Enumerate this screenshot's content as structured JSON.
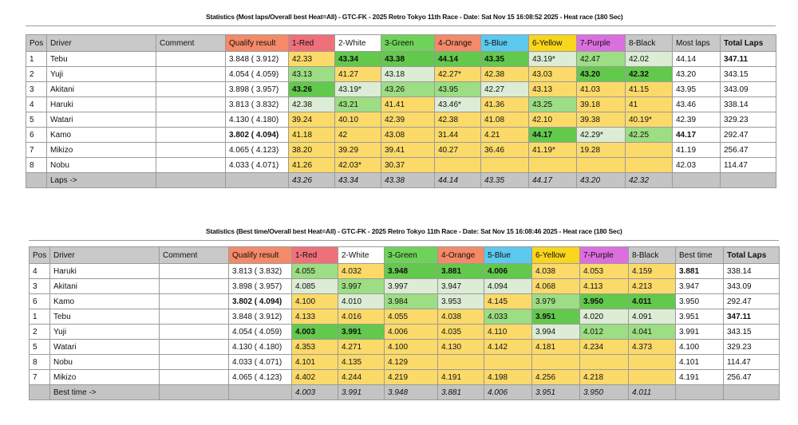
{
  "colors": {
    "Y": "#fbda6a",
    "G1": "#63c94c",
    "G2": "#9ddd83",
    "G3": "#dcecd5"
  },
  "headers": {
    "pos": "Pos",
    "driver": "Driver",
    "comment": "Comment",
    "qualify": "Qualify result",
    "lanes": [
      {
        "label": "1-Red",
        "color": "#f0707a"
      },
      {
        "label": "2-White",
        "color": "#ffffff"
      },
      {
        "label": "3-Green",
        "color": "#6fd35a"
      },
      {
        "label": "4-Orange",
        "color": "#f48a68"
      },
      {
        "label": "5-Blue",
        "color": "#5cc9ee"
      },
      {
        "label": "6-Yellow",
        "color": "#f9d51c"
      },
      {
        "label": "7-Purple",
        "color": "#dc6ee0"
      },
      {
        "label": "8-Black",
        "color": "#c8c8c8"
      }
    ]
  },
  "tables": [
    {
      "title": "Statistics (Most laps/Overall best Heat=All) - GTC-FK - 2025 Retro Tokyo 11th Race - Date: Sat Nov 15 16:08:52 2025 - Heat race (180 Sec)",
      "stat_label": "Most laps",
      "total_label": "Total Laps",
      "footer_label": "Laps ->",
      "rows": [
        {
          "pos": "1",
          "driver": "Tebu",
          "qualify": "3.848 ( 3.912)",
          "cells": [
            [
              "42.33",
              "Y"
            ],
            [
              "43.34",
              "G1"
            ],
            [
              "43.38",
              "G1"
            ],
            [
              "44.14",
              "G1"
            ],
            [
              "43.35",
              "G1"
            ],
            [
              "43.19*",
              "G3"
            ],
            [
              "42.47",
              "G2"
            ],
            [
              "42.02",
              "G3"
            ]
          ],
          "stat": "44.14",
          "total": "347.11",
          "total_bold": true
        },
        {
          "pos": "2",
          "driver": "Yuji",
          "qualify": "4.054 ( 4.059)",
          "cells": [
            [
              "43.13",
              "G2"
            ],
            [
              "41.27",
              "Y"
            ],
            [
              "43.18",
              "G3"
            ],
            [
              "42.27*",
              "Y"
            ],
            [
              "42.38",
              "Y"
            ],
            [
              "43.03",
              "Y"
            ],
            [
              "43.20",
              "G1"
            ],
            [
              "42.32",
              "G1"
            ]
          ],
          "stat": "43.20",
          "total": "343.15"
        },
        {
          "pos": "3",
          "driver": "Akitani",
          "qualify": "3.898 ( 3.957)",
          "cells": [
            [
              "43.26",
              "G1"
            ],
            [
              "43.19*",
              "G3"
            ],
            [
              "43.26",
              "G2"
            ],
            [
              "43.95",
              "G2"
            ],
            [
              "42.27",
              "G3"
            ],
            [
              "43.13",
              "Y"
            ],
            [
              "41.03",
              "Y"
            ],
            [
              "41.15",
              "Y"
            ]
          ],
          "stat": "43.95",
          "total": "343.09"
        },
        {
          "pos": "4",
          "driver": "Haruki",
          "qualify": "3.813 ( 3.832)",
          "cells": [
            [
              "42.38",
              "G3"
            ],
            [
              "43.21",
              "G2"
            ],
            [
              "41.41",
              "Y"
            ],
            [
              "43.46*",
              "G3"
            ],
            [
              "41.36",
              "Y"
            ],
            [
              "43.25",
              "G2"
            ],
            [
              "39.18",
              "Y"
            ],
            [
              "41",
              "Y"
            ]
          ],
          "stat": "43.46",
          "total": "338.14"
        },
        {
          "pos": "5",
          "driver": "Watari",
          "qualify": "4.130 ( 4.180)",
          "cells": [
            [
              "39.24",
              "Y"
            ],
            [
              "40.10",
              "Y"
            ],
            [
              "42.39",
              "Y"
            ],
            [
              "42.38",
              "Y"
            ],
            [
              "41.08",
              "Y"
            ],
            [
              "42.10",
              "Y"
            ],
            [
              "39.38",
              "Y"
            ],
            [
              "40.19*",
              "Y"
            ]
          ],
          "stat": "42.39",
          "total": "329.23"
        },
        {
          "pos": "6",
          "driver": "Kamo",
          "qualify": "3.802 ( 4.094)",
          "qualify_bold": true,
          "cells": [
            [
              "41.18",
              "Y"
            ],
            [
              "42",
              "Y"
            ],
            [
              "43.08",
              "Y"
            ],
            [
              "31.44",
              "Y"
            ],
            [
              "4.21",
              "Y"
            ],
            [
              "44.17",
              "G1"
            ],
            [
              "42.29*",
              "G3"
            ],
            [
              "42.25",
              "G2"
            ]
          ],
          "stat": "44.17",
          "stat_bold": true,
          "total": "292.47"
        },
        {
          "pos": "7",
          "driver": "Mikizo",
          "qualify": "4.065 ( 4.123)",
          "cells": [
            [
              "38.20",
              "Y"
            ],
            [
              "39.29",
              "Y"
            ],
            [
              "39.41",
              "Y"
            ],
            [
              "40.27",
              "Y"
            ],
            [
              "36.46",
              "Y"
            ],
            [
              "41.19*",
              "Y"
            ],
            [
              "19.28",
              "Y"
            ],
            [
              "",
              "Y"
            ]
          ],
          "stat": "41.19",
          "total": "256.47"
        },
        {
          "pos": "8",
          "driver": "Nobu",
          "qualify": "4.033 ( 4.071)",
          "cells": [
            [
              "41.26",
              "Y"
            ],
            [
              "42.03*",
              "Y"
            ],
            [
              "30.37",
              "Y"
            ],
            [
              "",
              "Y"
            ],
            [
              "",
              "Y"
            ],
            [
              "",
              "Y"
            ],
            [
              "",
              "Y"
            ],
            [
              "",
              "Y"
            ]
          ],
          "stat": "42.03",
          "total": "114.47"
        }
      ],
      "footer": [
        "43.26",
        "43.34",
        "43.38",
        "44.14",
        "43.35",
        "44.17",
        "43.20",
        "42.32"
      ]
    },
    {
      "title": "Statistics (Best time/Overall best Heat=All) - GTC-FK - 2025 Retro Tokyo 11th Race - Date: Sat Nov 15 16:08:46 2025 - Heat race (180 Sec)",
      "stat_label": "Best time",
      "total_label": "Total Laps",
      "footer_label": "Best time ->",
      "rows": [
        {
          "pos": "4",
          "driver": "Haruki",
          "qualify": "3.813 ( 3.832)",
          "cells": [
            [
              "4.055",
              "G2"
            ],
            [
              "4.032",
              "Y"
            ],
            [
              "3.948",
              "G1"
            ],
            [
              "3.881",
              "G1"
            ],
            [
              "4.006",
              "G1"
            ],
            [
              "4.038",
              "Y"
            ],
            [
              "4.053",
              "Y"
            ],
            [
              "4.159",
              "Y"
            ]
          ],
          "stat": "3.881",
          "stat_bold": true,
          "total": "338.14"
        },
        {
          "pos": "3",
          "driver": "Akitani",
          "qualify": "3.898 ( 3.957)",
          "cells": [
            [
              "4.085",
              "G3"
            ],
            [
              "3.997",
              "G2"
            ],
            [
              "3.997",
              "G3"
            ],
            [
              "3.947",
              "G3"
            ],
            [
              "4.094",
              "G3"
            ],
            [
              "4.068",
              "Y"
            ],
            [
              "4.113",
              "Y"
            ],
            [
              "4.213",
              "Y"
            ]
          ],
          "stat": "3.947",
          "total": "343.09"
        },
        {
          "pos": "6",
          "driver": "Kamo",
          "qualify": "3.802 ( 4.094)",
          "qualify_bold": true,
          "cells": [
            [
              "4.100",
              "Y"
            ],
            [
              "4.010",
              "G3"
            ],
            [
              "3.984",
              "G2"
            ],
            [
              "3.953",
              "G3"
            ],
            [
              "4.145",
              "Y"
            ],
            [
              "3.979",
              "G2"
            ],
            [
              "3.950",
              "G1"
            ],
            [
              "4.011",
              "G1"
            ]
          ],
          "stat": "3.950",
          "total": "292.47"
        },
        {
          "pos": "1",
          "driver": "Tebu",
          "qualify": "3.848 ( 3.912)",
          "cells": [
            [
              "4.133",
              "Y"
            ],
            [
              "4.016",
              "Y"
            ],
            [
              "4.055",
              "Y"
            ],
            [
              "4.038",
              "Y"
            ],
            [
              "4.033",
              "G2"
            ],
            [
              "3.951",
              "G1"
            ],
            [
              "4.020",
              "G3"
            ],
            [
              "4.091",
              "G3"
            ]
          ],
          "stat": "3.951",
          "total": "347.11",
          "total_bold": true
        },
        {
          "pos": "2",
          "driver": "Yuji",
          "qualify": "4.054 ( 4.059)",
          "cells": [
            [
              "4.003",
              "G1"
            ],
            [
              "3.991",
              "G1"
            ],
            [
              "4.006",
              "Y"
            ],
            [
              "4.035",
              "Y"
            ],
            [
              "4.110",
              "Y"
            ],
            [
              "3.994",
              "G3"
            ],
            [
              "4.012",
              "G2"
            ],
            [
              "4.041",
              "G2"
            ]
          ],
          "stat": "3.991",
          "total": "343.15"
        },
        {
          "pos": "5",
          "driver": "Watari",
          "qualify": "4.130 ( 4.180)",
          "cells": [
            [
              "4.353",
              "Y"
            ],
            [
              "4.271",
              "Y"
            ],
            [
              "4.100",
              "Y"
            ],
            [
              "4.130",
              "Y"
            ],
            [
              "4.142",
              "Y"
            ],
            [
              "4.181",
              "Y"
            ],
            [
              "4.234",
              "Y"
            ],
            [
              "4.373",
              "Y"
            ]
          ],
          "stat": "4.100",
          "total": "329.23"
        },
        {
          "pos": "8",
          "driver": "Nobu",
          "qualify": "4.033 ( 4.071)",
          "cells": [
            [
              "4.101",
              "Y"
            ],
            [
              "4.135",
              "Y"
            ],
            [
              "4.129",
              "Y"
            ],
            [
              "",
              "Y"
            ],
            [
              "",
              "Y"
            ],
            [
              "",
              "Y"
            ],
            [
              "",
              "Y"
            ],
            [
              "",
              "Y"
            ]
          ],
          "stat": "4.101",
          "total": "114.47"
        },
        {
          "pos": "7",
          "driver": "Mikizo",
          "qualify": "4.065 ( 4.123)",
          "cells": [
            [
              "4.402",
              "Y"
            ],
            [
              "4.244",
              "Y"
            ],
            [
              "4.219",
              "Y"
            ],
            [
              "4.191",
              "Y"
            ],
            [
              "4.198",
              "Y"
            ],
            [
              "4.256",
              "Y"
            ],
            [
              "4.218",
              "Y"
            ],
            [
              "",
              "Y"
            ]
          ],
          "stat": "4.191",
          "total": "256.47"
        }
      ],
      "footer": [
        "4.003",
        "3.991",
        "3.948",
        "3.881",
        "4.006",
        "3.951",
        "3.950",
        "4.011"
      ]
    }
  ]
}
